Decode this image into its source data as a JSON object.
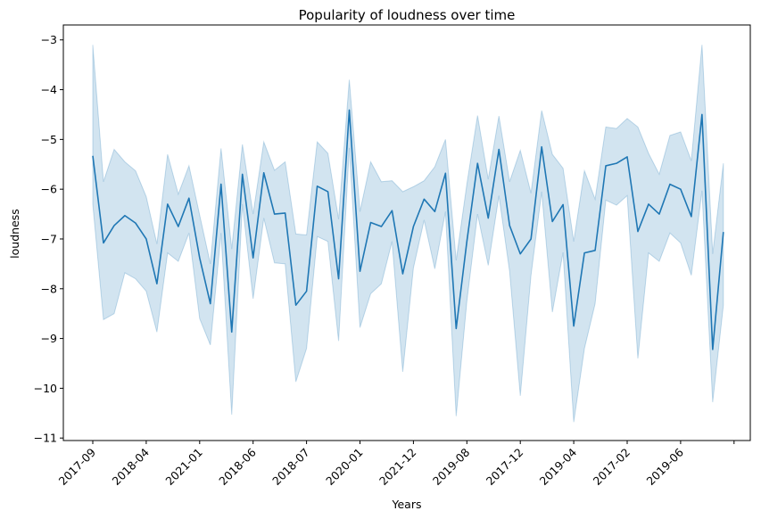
{
  "chart_data": {
    "type": "line",
    "title": "Popularity of loudness over time",
    "xlabel": "Years",
    "ylabel": "loudness",
    "ylim": [
      -11.05,
      -2.7
    ],
    "yticks": [
      -11,
      -10,
      -9,
      -8,
      -7,
      -6,
      -5,
      -4,
      -3
    ],
    "xtick_labels": [
      "2017-09",
      "2018-04",
      "2021-01",
      "2018-06",
      "2018-07",
      "2020-01",
      "2021-12",
      "2019-08",
      "2017-12",
      "2019-04",
      "2017-02",
      "2019-06",
      ""
    ],
    "colors": {
      "line": "#1f77b4",
      "band": "#1f77b4"
    },
    "series": [
      {
        "values": [
          -5.33,
          -7.08,
          -6.73,
          -6.53,
          -6.68,
          -7.0,
          -7.9,
          -6.3,
          -6.75,
          -6.18,
          -7.38,
          -8.3,
          -5.9,
          -8.87,
          -5.7,
          -7.38,
          -5.67,
          -6.5,
          -6.48,
          -8.33,
          -8.05,
          -5.94,
          -6.05,
          -7.8,
          -4.41,
          -7.65,
          -6.67,
          -6.75,
          -6.43,
          -7.7,
          -6.75,
          -6.2,
          -6.45,
          -5.68,
          -8.8,
          -7.05,
          -5.48,
          -6.58,
          -5.2,
          -6.73,
          -7.3,
          -7.0,
          -5.15,
          -6.65,
          -6.31,
          -8.75,
          -7.28,
          -7.23,
          -5.53,
          -5.48,
          -5.35,
          -6.85,
          -6.3,
          -6.5,
          -5.9,
          -6.0,
          -6.55,
          -4.5,
          -9.22,
          -6.86
        ],
        "ci_upper": [
          -3.1,
          -5.85,
          -5.2,
          -5.45,
          -5.63,
          -6.15,
          -7.1,
          -5.3,
          -6.1,
          -5.53,
          -6.52,
          -7.5,
          -5.18,
          -7.2,
          -5.1,
          -6.5,
          -5.05,
          -5.62,
          -5.45,
          -6.9,
          -6.92,
          -5.05,
          -5.28,
          -6.6,
          -3.8,
          -6.45,
          -5.45,
          -5.85,
          -5.83,
          -6.05,
          -5.95,
          -5.83,
          -5.55,
          -5.0,
          -7.43,
          -5.9,
          -4.52,
          -5.8,
          -4.53,
          -5.85,
          -5.22,
          -6.08,
          -4.42,
          -5.3,
          -5.58,
          -7.05,
          -5.63,
          -6.2,
          -4.75,
          -4.78,
          -4.58,
          -4.75,
          -5.28,
          -5.7,
          -4.92,
          -4.85,
          -5.43,
          -3.1,
          -7.3,
          -5.48
        ],
        "ci_lower": [
          -6.3,
          -8.62,
          -8.5,
          -7.68,
          -7.8,
          -8.05,
          -8.87,
          -7.28,
          -7.45,
          -6.88,
          -8.6,
          -9.13,
          -6.88,
          -10.53,
          -6.3,
          -8.2,
          -6.58,
          -7.48,
          -7.5,
          -9.87,
          -9.2,
          -6.95,
          -7.05,
          -9.05,
          -5.17,
          -8.78,
          -8.1,
          -7.9,
          -7.05,
          -9.67,
          -7.58,
          -6.62,
          -7.6,
          -6.45,
          -10.56,
          -8.25,
          -6.5,
          -7.53,
          -6.13,
          -7.65,
          -10.15,
          -7.73,
          -6.05,
          -8.47,
          -7.27,
          -10.68,
          -9.2,
          -8.3,
          -6.22,
          -6.32,
          -6.13,
          -9.4,
          -7.28,
          -7.45,
          -6.88,
          -7.08,
          -7.73,
          -6.03,
          -10.28,
          -8.33
        ]
      }
    ]
  }
}
